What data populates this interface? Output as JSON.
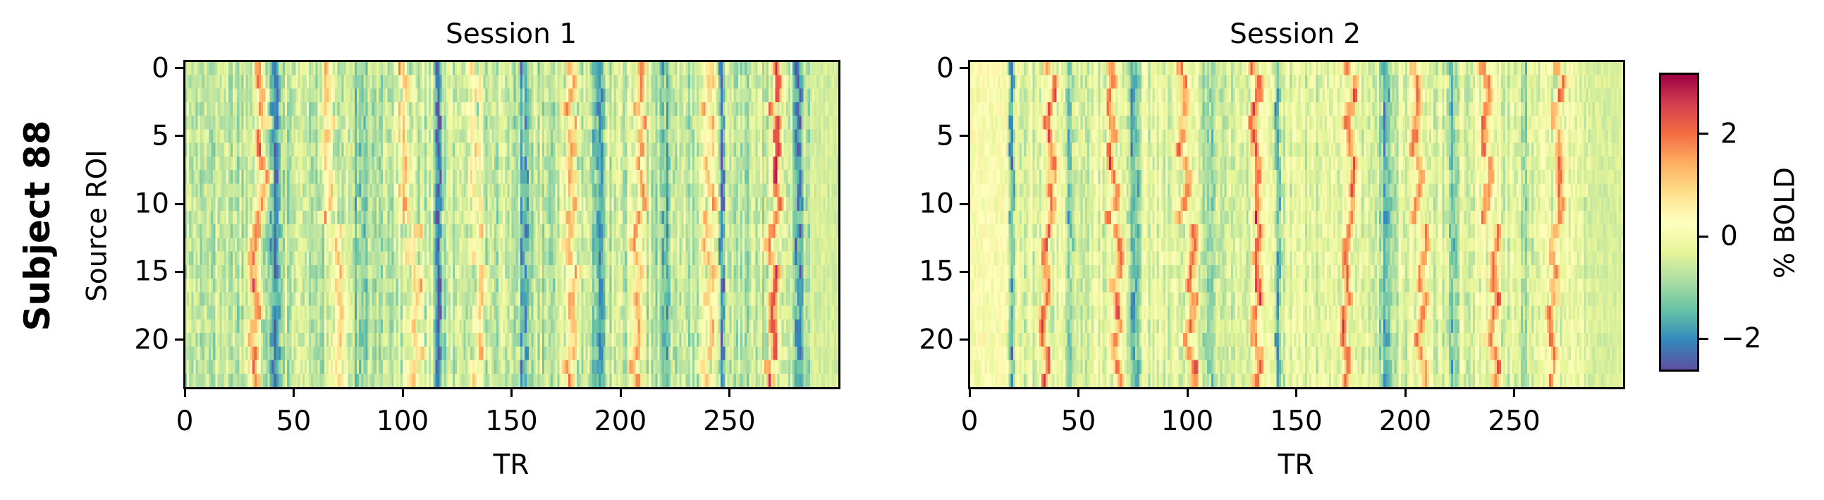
{
  "figure": {
    "row_title": "Subject 88",
    "ylabel": "Source ROI",
    "colorbar": {
      "label": "% BOLD",
      "ticks": [
        {
          "value": 2,
          "label": "2"
        },
        {
          "value": 0,
          "label": "0"
        },
        {
          "value": -2,
          "label": "−2"
        }
      ],
      "vmin": -2.63,
      "vmax": 3.17,
      "colormap": "Spectral_r",
      "stops": [
        "#5e4fa2",
        "#3288bd",
        "#66c2a5",
        "#abdda4",
        "#e6f598",
        "#ffffbf",
        "#fee08b",
        "#fdae61",
        "#f46d43",
        "#d53e4f",
        "#9e0142"
      ]
    }
  },
  "panels": [
    {
      "title": "Session 1",
      "xlabel": "TR",
      "x_ticks": [
        "0",
        "50",
        "100",
        "150",
        "200",
        "250"
      ],
      "y_ticks": [
        "0",
        "5",
        "10",
        "15",
        "20"
      ]
    },
    {
      "title": "Session 2",
      "xlabel": "TR",
      "x_ticks": [
        "0",
        "50",
        "100",
        "150",
        "200",
        "250"
      ],
      "y_ticks": [
        "0",
        "5",
        "10",
        "15",
        "20"
      ]
    }
  ],
  "chart_data": [
    {
      "type": "heatmap",
      "title": "Session 1",
      "row_title": "Subject 88",
      "xlabel": "TR",
      "ylabel": "Source ROI",
      "xlim": [
        0,
        300
      ],
      "ylim": [
        23.5,
        -0.5
      ],
      "n_rows": 24,
      "n_cols": 300,
      "x_ticks": [
        0,
        50,
        100,
        150,
        200,
        250
      ],
      "y_ticks": [
        0,
        5,
        10,
        15,
        20
      ],
      "colorbar_label": "% BOLD",
      "colorbar_range": [
        -2.63,
        3.17
      ],
      "seed": 17,
      "baseline": -0.6,
      "noise": 0.55,
      "peaks_TR": [
        {
          "center": 35,
          "shift_rows_12_23": -4,
          "amp": 2.3,
          "width": 2.2
        },
        {
          "center": 65,
          "shift_rows_12_23": 5,
          "amp": 1.6,
          "width": 2.4
        },
        {
          "center": 100,
          "shift_rows_12_23": 5,
          "amp": 1.6,
          "width": 2.6
        },
        {
          "center": 132,
          "shift_rows_12_23": 2,
          "amp": 1.7,
          "width": 2.4
        },
        {
          "center": 177,
          "shift_rows_12_23": 0,
          "amp": 2.0,
          "width": 2.4
        },
        {
          "center": 209,
          "shift_rows_12_23": -2,
          "amp": 1.9,
          "width": 2.0
        },
        {
          "center": 240,
          "shift_rows_12_23": 0,
          "amp": 1.9,
          "width": 2.2
        },
        {
          "center": 271,
          "shift_rows_12_23": -2,
          "amp": 2.8,
          "width": 2.0
        }
      ],
      "troughs_TR": [
        {
          "center": 41,
          "amp": -1.6,
          "width": 1.8
        },
        {
          "center": 80,
          "amp": -0.9,
          "width": 3.0
        },
        {
          "center": 116,
          "amp": -1.8,
          "width": 1.5
        },
        {
          "center": 155,
          "amp": -1.2,
          "width": 2.0
        },
        {
          "center": 190,
          "amp": -1.1,
          "width": 2.5
        },
        {
          "center": 220,
          "amp": -1.0,
          "width": 2.5
        },
        {
          "center": 246,
          "amp": -1.6,
          "width": 1.0
        },
        {
          "center": 281,
          "amp": -1.9,
          "width": 1.6
        }
      ],
      "quiet_tail_TR": [
        287,
        300
      ]
    },
    {
      "type": "heatmap",
      "title": "Session 2",
      "row_title": "Subject 88",
      "xlabel": "TR",
      "ylabel": "Source ROI",
      "xlim": [
        0,
        300
      ],
      "ylim": [
        23.5,
        -0.5
      ],
      "n_rows": 24,
      "n_cols": 300,
      "x_ticks": [
        0,
        50,
        100,
        150,
        200,
        250
      ],
      "y_ticks": [
        0,
        5,
        10,
        15,
        20
      ],
      "colorbar_label": "% BOLD",
      "colorbar_range": [
        -2.63,
        3.17
      ],
      "seed": 29,
      "baseline": -0.3,
      "noise": 0.5,
      "warm_head_TR": [
        0,
        17
      ],
      "peaks_TR": [
        {
          "center": 37,
          "shift_rows_12_23": -3,
          "amp": 2.4,
          "width": 2.0
        },
        {
          "center": 65,
          "shift_rows_12_23": 2,
          "amp": 2.2,
          "width": 2.0
        },
        {
          "center": 98,
          "shift_rows_12_23": 3,
          "amp": 2.2,
          "width": 2.0
        },
        {
          "center": 131,
          "shift_rows_12_23": 0,
          "amp": 2.4,
          "width": 2.0
        },
        {
          "center": 175,
          "shift_rows_12_23": -3,
          "amp": 2.3,
          "width": 2.0
        },
        {
          "center": 205,
          "shift_rows_12_23": 2,
          "amp": 2.1,
          "width": 2.0
        },
        {
          "center": 237,
          "shift_rows_12_23": 3,
          "amp": 2.1,
          "width": 2.0
        },
        {
          "center": 270,
          "shift_rows_12_23": -3,
          "amp": 2.2,
          "width": 2.0
        }
      ],
      "troughs_TR": [
        {
          "center": 19,
          "amp": -1.6,
          "width": 1.0
        },
        {
          "center": 46,
          "amp": -1.0,
          "width": 2.5
        },
        {
          "center": 75,
          "amp": -1.3,
          "width": 2.5
        },
        {
          "center": 110,
          "amp": -0.9,
          "width": 3.0
        },
        {
          "center": 141,
          "amp": -1.7,
          "width": 1.5
        },
        {
          "center": 191,
          "amp": -1.4,
          "width": 3.0
        },
        {
          "center": 221,
          "amp": -1.3,
          "width": 2.5
        },
        {
          "center": 255,
          "amp": -0.6,
          "width": 3.0
        }
      ],
      "quiet_tail_TR": [
        285,
        300
      ]
    }
  ]
}
